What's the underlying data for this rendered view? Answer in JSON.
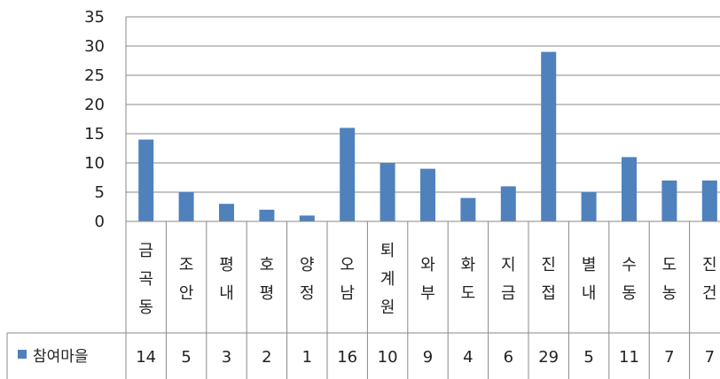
{
  "chart_data": {
    "type": "bar",
    "categories": [
      "금곡동",
      "조안",
      "평내",
      "호평",
      "양정",
      "오남",
      "퇴계원",
      "와부",
      "화도",
      "지금",
      "진접",
      "별내",
      "수동",
      "도농",
      "진건"
    ],
    "series": [
      {
        "name": "참여마을",
        "values": [
          14,
          5,
          3,
          2,
          1,
          16,
          10,
          9,
          4,
          6,
          29,
          5,
          11,
          7,
          7
        ]
      }
    ],
    "ylim": [
      0,
      35
    ],
    "yticks": [
      "0",
      "5",
      "10",
      "15",
      "20",
      "25",
      "30",
      "35"
    ],
    "grid": true,
    "legend": "bottom-left data table",
    "colors": {
      "bar": "#4f81bd",
      "grid": "#888888",
      "axis": "#888888"
    }
  }
}
